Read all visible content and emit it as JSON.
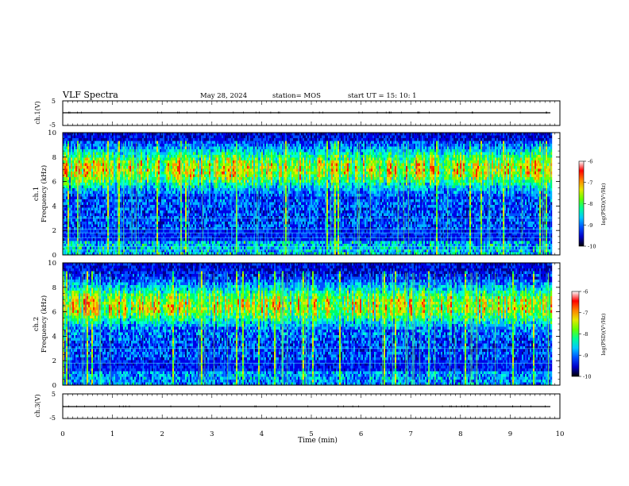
{
  "header": {
    "title": "VLF Spectra",
    "date": "May 28, 2024",
    "station": "station= MOS",
    "start": "start  UT =   15: 10: 1"
  },
  "chart_data": {
    "type": "heatmap",
    "xlabel": "Time  (min)",
    "xlim": [
      0,
      10
    ],
    "x_ticks": [
      "0",
      "1",
      "2",
      "3",
      "4",
      "5",
      "6",
      "7",
      "8",
      "9",
      "10"
    ],
    "panels": [
      {
        "name": "ch1-waveform",
        "ylabel": "ch.1(V)",
        "ylim": [
          -5,
          5
        ],
        "y_ticks": [
          "5",
          "-5"
        ],
        "trace_level": 0
      },
      {
        "name": "ch1-spectrogram",
        "ylabel_top": "ch.1",
        "ylabel": "Frequency  (kHz)",
        "ylim": [
          0,
          10
        ],
        "y_ticks": [
          "0",
          "2",
          "4",
          "6",
          "8",
          "10"
        ],
        "data_end_min": 9.85,
        "band_center_khz": 7.0,
        "horizontal_lines_khz": [
          0.4,
          0.7,
          1.4,
          1.8,
          2.1,
          3.0
        ]
      },
      {
        "name": "ch2-spectrogram",
        "ylabel_top": "ch.2",
        "ylabel": "Frequency  (kHz)",
        "ylim": [
          0,
          10
        ],
        "y_ticks": [
          "0",
          "2",
          "4",
          "6",
          "8",
          "10"
        ],
        "data_end_min": 9.85,
        "band_center_khz": 6.5,
        "horizontal_lines_khz": [
          1.8,
          3.0
        ]
      },
      {
        "name": "ch3-waveform",
        "ylabel": "ch.3(V)",
        "ylim": [
          -5,
          5
        ],
        "y_ticks": [
          "5",
          "-5"
        ],
        "trace_level": 0
      }
    ],
    "colorbar": {
      "label": "log(PSD)(V²/Hz)",
      "range": [
        -10,
        -6
      ],
      "ticks": [
        "-6",
        "-7",
        "-8",
        "-9",
        "-10"
      ],
      "colors": [
        "#000000",
        "#0000c8",
        "#0050ff",
        "#00c8ff",
        "#00ff96",
        "#64ff00",
        "#e6e600",
        "#ff8000",
        "#ff0000",
        "#ffffff"
      ]
    }
  }
}
